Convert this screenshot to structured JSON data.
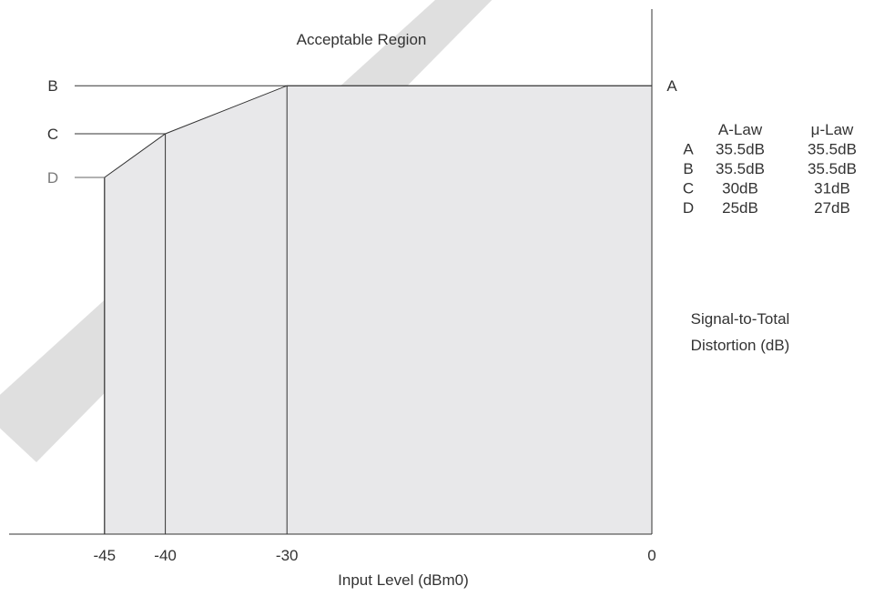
{
  "chart_data": {
    "type": "area",
    "title": "",
    "annotations": {
      "region_label": "Acceptable Region"
    },
    "xlabel": "Input Level (dBm0)",
    "ylabel": "Signal-to-Total Distortion (dB)",
    "ylabel_lines": [
      "Signal-to-Total",
      "Distortion (dB)"
    ],
    "x_ticks": [
      {
        "value": -45,
        "label": "-45"
      },
      {
        "value": -40,
        "label": "-40"
      },
      {
        "value": -30,
        "label": "-30"
      },
      {
        "value": 0,
        "label": "0"
      }
    ],
    "series": [
      {
        "values_by_point": [
          {
            "x": -45,
            "y": 25
          },
          {
            "x": -40,
            "y": 30
          },
          {
            "x": -30,
            "y": 35.5
          },
          {
            "x": 0,
            "y": 35.5
          }
        ]
      }
    ],
    "point_labels": [
      {
        "label": "B",
        "x": -30,
        "y": 35.5,
        "side": "left"
      },
      {
        "label": "C",
        "x": -40,
        "y": 30,
        "side": "left"
      },
      {
        "label": "D",
        "x": -45,
        "y": 25,
        "side": "left"
      },
      {
        "label": "A",
        "x": 0,
        "y": 35.5,
        "side": "right"
      }
    ],
    "table": {
      "headers": [
        "",
        "A-Law",
        "μ-Law"
      ],
      "rows": [
        [
          "A",
          "35.5dB",
          "35.5dB"
        ],
        [
          "B",
          "35.5dB",
          "35.5dB"
        ],
        [
          "C",
          "30dB",
          "31dB"
        ],
        [
          "D",
          "25dB",
          "27dB"
        ]
      ]
    },
    "colors": {
      "region_fill": "#e8e8ea",
      "line": "#333333",
      "watermark": "#d9d9d9"
    }
  }
}
